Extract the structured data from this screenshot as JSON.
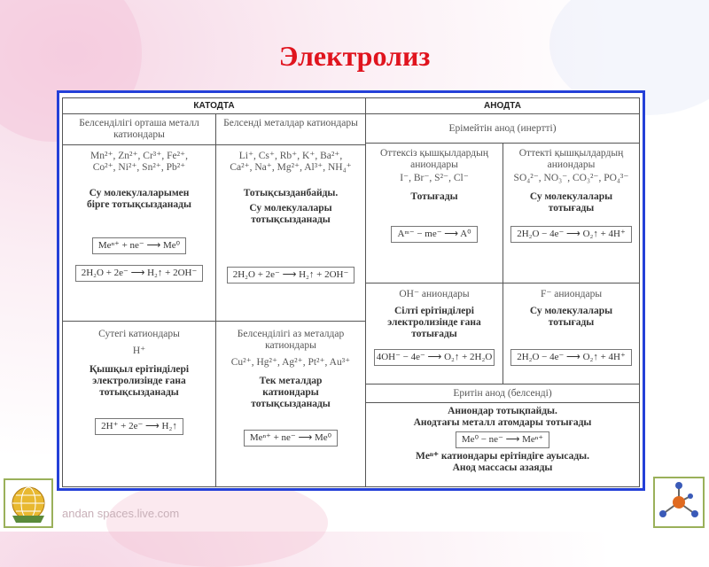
{
  "title": "Электролиз",
  "watermark": "andan spaces.live.com",
  "cathode": {
    "header": "КАТОДТА",
    "col1": {
      "title": "Белсенділігі орташа металл катиондары",
      "ions": [
        "Mn²⁺, Zn²⁺, Cr³⁺, Fe²⁺,",
        "Co²⁺, Ni²⁺, Sn²⁺, Pb²⁺"
      ],
      "note": "Су молекулаларымен бірге тотықсызданады",
      "eq1": "Meⁿ⁺ + ne⁻ ⟶ Me⁰",
      "eq2": "2H₂O + 2e⁻ ⟶ H₂↑ + 2OH⁻"
    },
    "col2": {
      "title": "Белсенді металдар катиондары",
      "ions": [
        "Li⁺, Cs⁺, Rb⁺, K⁺, Ba²⁺,",
        "Ca²⁺, Na⁺, Mg²⁺, Al³⁺, NH₄⁺"
      ],
      "note1": "Тотықсызданбайды.",
      "note2": "Су молекулалары тотықсызданады",
      "eq": "2H₂O + 2e⁻ ⟶ H₂↑ + 2OH⁻"
    },
    "col3": {
      "title": "Сутегі катиондары",
      "ions": "H⁺",
      "note": "Қышқыл ерітінділері электролизінде ғана тотықсызданады",
      "eq": "2H⁺ + 2e⁻ ⟶ H₂↑"
    },
    "col4": {
      "title": "Белсенділігі аз металдар катиондары",
      "ions": "Cu²⁺, Hg²⁺, Ag²⁺, Pt²⁺, Au³⁺",
      "note": "Тек металдар катиондары тотықсызданады",
      "eq": "Meⁿ⁺ + ne⁻ ⟶ Me⁰"
    }
  },
  "anode": {
    "header": "АНОДТА",
    "inert": "Ерімейтін анод (инертті)",
    "a1": {
      "title": "Оттексіз қышқылдардың аниондары",
      "ions": "I⁻, Br⁻, S²⁻, Cl⁻",
      "note": "Тотығады",
      "eq": "Aᵐ⁻ − me⁻ ⟶ A⁰"
    },
    "a2": {
      "title": "Оттекті қышқылдардың аниондары",
      "ions": "SO₄²⁻, NO₃⁻, CO₃²⁻, PO₄³⁻",
      "note": "Су молекулалары тотығады",
      "eq": "2H₂O − 4e⁻ ⟶ O₂↑ + 4H⁺"
    },
    "a3": {
      "title": "OH⁻ аниондары",
      "note": "Сілті ерітінділері электролизінде ғана тотығады",
      "eq": "4OH⁻ − 4e⁻ ⟶ O₂↑ + 2H₂O"
    },
    "a4": {
      "title": "F⁻ аниондары",
      "note": "Су молекулалары тотығады",
      "eq": "2H₂O − 4e⁻ ⟶ O₂↑ + 4H⁺"
    },
    "active": "Еритін анод (белсенді)",
    "active_note1": "Аниондар тотықпайды.",
    "active_note2": "Анодтағы металл атомдары тотығады",
    "active_eq": "Me⁰ − ne⁻ ⟶ Meⁿ⁺",
    "active_note3": "Meⁿ⁺ катиондары ерітіндіге ауысады.",
    "active_note4": "Анод массасы азаяды"
  }
}
